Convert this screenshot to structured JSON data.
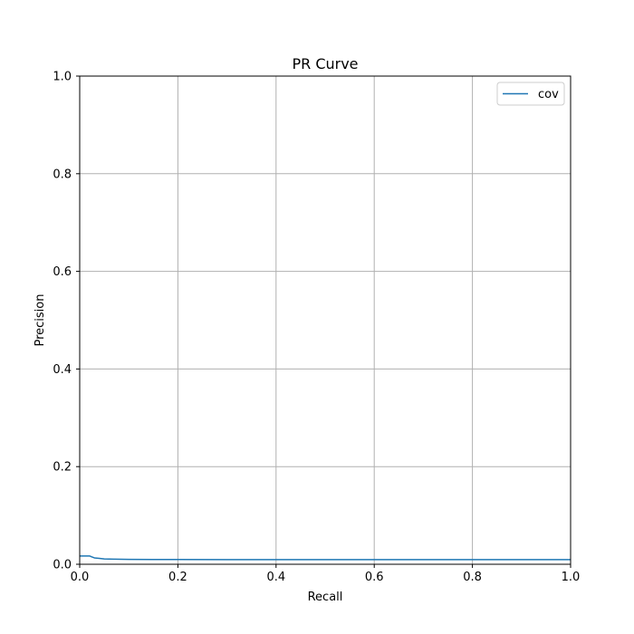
{
  "chart_data": {
    "type": "line",
    "title": "PR Curve",
    "xlabel": "Recall",
    "ylabel": "Precision",
    "xlim": [
      0.0,
      1.0
    ],
    "ylim": [
      0.0,
      1.0
    ],
    "x_ticks": [
      "0.0",
      "0.2",
      "0.4",
      "0.6",
      "0.8",
      "1.0"
    ],
    "y_ticks": [
      "0.0",
      "0.2",
      "0.4",
      "0.6",
      "0.8",
      "1.0"
    ],
    "grid": true,
    "legend_position": "top-right",
    "series": [
      {
        "name": "cov",
        "color": "#1f77b4",
        "x": [
          0.0,
          0.01,
          0.02,
          0.025,
          0.03,
          0.04,
          0.05,
          0.07,
          0.1,
          0.15,
          0.2,
          0.3,
          0.4,
          0.5,
          0.6,
          0.7,
          0.8,
          0.9,
          1.0
        ],
        "y": [
          0.017,
          0.017,
          0.017,
          0.015,
          0.013,
          0.012,
          0.011,
          0.0105,
          0.01,
          0.0098,
          0.0097,
          0.0096,
          0.0096,
          0.0096,
          0.0095,
          0.0095,
          0.0095,
          0.0095,
          0.0095
        ]
      }
    ]
  }
}
